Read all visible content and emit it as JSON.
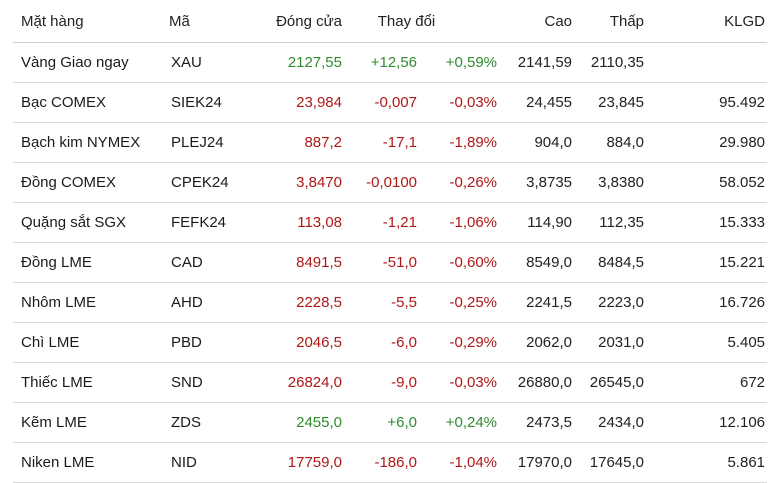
{
  "colors": {
    "up": "#2e8b2e",
    "down": "#b01818",
    "text": "#1b1b1b",
    "border": "#d9d9d9"
  },
  "headers": {
    "name": "Mặt hàng",
    "code": "Mã",
    "close": "Đóng cửa",
    "change": "Thay đổi",
    "high": "Cao",
    "low": "Thấp",
    "volume": "KLGD"
  },
  "rows": [
    {
      "name": "Vàng Giao ngay",
      "code": "XAU",
      "close": "2127,55",
      "change": "+12,56",
      "pct": "+0,59%",
      "high": "2141,59",
      "low": "2110,35",
      "volume": "",
      "direction": "up"
    },
    {
      "name": "Bạc COMEX",
      "code": "SIEK24",
      "close": "23,984",
      "change": "-0,007",
      "pct": "-0,03%",
      "high": "24,455",
      "low": "23,845",
      "volume": "95.492",
      "direction": "down"
    },
    {
      "name": "Bạch kim NYMEX",
      "code": "PLEJ24",
      "close": "887,2",
      "change": "-17,1",
      "pct": "-1,89%",
      "high": "904,0",
      "low": "884,0",
      "volume": "29.980",
      "direction": "down"
    },
    {
      "name": "Đồng COMEX",
      "code": "CPEK24",
      "close": "3,8470",
      "change": "-0,0100",
      "pct": "-0,26%",
      "high": "3,8735",
      "low": "3,8380",
      "volume": "58.052",
      "direction": "down"
    },
    {
      "name": "Quặng sắt SGX",
      "code": "FEFK24",
      "close": "113,08",
      "change": "-1,21",
      "pct": "-1,06%",
      "high": "114,90",
      "low": "112,35",
      "volume": "15.333",
      "direction": "down"
    },
    {
      "name": "Đồng LME",
      "code": "CAD",
      "close": "8491,5",
      "change": "-51,0",
      "pct": "-0,60%",
      "high": "8549,0",
      "low": "8484,5",
      "volume": "15.221",
      "direction": "down"
    },
    {
      "name": "Nhôm LME",
      "code": "AHD",
      "close": "2228,5",
      "change": "-5,5",
      "pct": "-0,25%",
      "high": "2241,5",
      "low": "2223,0",
      "volume": "16.726",
      "direction": "down"
    },
    {
      "name": "Chì LME",
      "code": "PBD",
      "close": "2046,5",
      "change": "-6,0",
      "pct": "-0,29%",
      "high": "2062,0",
      "low": "2031,0",
      "volume": "5.405",
      "direction": "down"
    },
    {
      "name": "Thiếc LME",
      "code": "SND",
      "close": "26824,0",
      "change": "-9,0",
      "pct": "-0,03%",
      "high": "26880,0",
      "low": "26545,0",
      "volume": "672",
      "direction": "down"
    },
    {
      "name": "Kẽm LME",
      "code": "ZDS",
      "close": "2455,0",
      "change": "+6,0",
      "pct": "+0,24%",
      "high": "2473,5",
      "low": "2434,0",
      "volume": "12.106",
      "direction": "up"
    },
    {
      "name": "Niken LME",
      "code": "NID",
      "close": "17759,0",
      "change": "-186,0",
      "pct": "-1,04%",
      "high": "17970,0",
      "low": "17645,0",
      "volume": "5.861",
      "direction": "down"
    }
  ]
}
